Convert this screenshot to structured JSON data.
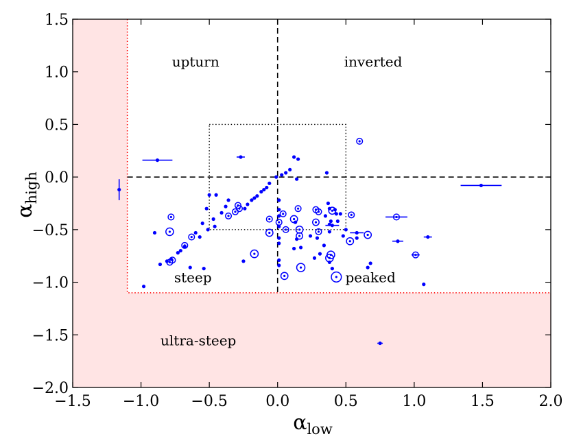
{
  "chart_data": {
    "type": "scatter",
    "xlabel": "α",
    "xlabel_sub": "low",
    "ylabel": "α",
    "ylabel_sub": "high",
    "xlim": [
      -1.5,
      2.0
    ],
    "ylim": [
      -2.0,
      1.5
    ],
    "x_ticks": [
      -1.5,
      -1.0,
      -0.5,
      0.0,
      0.5,
      1.0,
      1.5,
      2.0
    ],
    "y_ticks": [
      -2.0,
      -1.5,
      -1.0,
      -0.5,
      0.0,
      0.5,
      1.0,
      1.5
    ],
    "x_tick_labels": [
      "−1.5",
      "−1.0",
      "−0.5",
      "0.0",
      "0.5",
      "1.0",
      "1.5",
      "2.0"
    ],
    "y_tick_labels": [
      "−2.0",
      "−1.5",
      "−1.0",
      "−0.5",
      "0.0",
      "0.5",
      "1.0",
      "1.5"
    ],
    "grid": false,
    "colors": {
      "points": "#0000ff",
      "ultra_steep_fill": "#ffe4e4",
      "ultra_steep_border": "#ff0000",
      "guides": "#000000"
    },
    "region_labels": [
      {
        "text": "upturn",
        "x": -0.6,
        "y": 1.05
      },
      {
        "text": "inverted",
        "x": 0.7,
        "y": 1.05
      },
      {
        "text": "steep",
        "x": -0.62,
        "y": -1.0
      },
      {
        "text": "peaked",
        "x": 0.68,
        "y": -1.0
      },
      {
        "text": "ultra-steep",
        "x": -0.58,
        "y": -1.6
      }
    ],
    "ultra_steep_threshold": -1.1,
    "central_box": [
      -0.5,
      -0.5,
      0.5,
      0.5
    ],
    "series": [
      {
        "marker": "filled-dot",
        "points": [
          [
            -0.88,
            0.16,
            0.11,
            0
          ],
          [
            -1.16,
            -0.12,
            0,
            0.1
          ],
          [
            1.49,
            -0.08,
            0.15,
            0
          ],
          [
            -0.27,
            0.19,
            0.03,
            0
          ],
          [
            0.12,
            0.19,
            0,
            0
          ],
          [
            0.15,
            0.17,
            0,
            0
          ],
          [
            0.09,
            0.07,
            0,
            0
          ],
          [
            0.06,
            0.04,
            0,
            0
          ],
          [
            0.03,
            0.02,
            0,
            0
          ],
          [
            0.36,
            0.04,
            0,
            0
          ],
          [
            0.14,
            -0.02,
            0,
            0
          ],
          [
            -0.01,
            0,
            0,
            0
          ],
          [
            -0.06,
            -0.06,
            0,
            0
          ],
          [
            -0.08,
            -0.1,
            0,
            0
          ],
          [
            -0.1,
            -0.12,
            0,
            0
          ],
          [
            -0.12,
            -0.14,
            0,
            0
          ],
          [
            -0.15,
            -0.18,
            0,
            0
          ],
          [
            -0.17,
            -0.2,
            0,
            0
          ],
          [
            -0.19,
            -0.22,
            0,
            0
          ],
          [
            -0.22,
            -0.26,
            0,
            0
          ],
          [
            -0.24,
            -0.3,
            0,
            0
          ],
          [
            -0.5,
            -0.17,
            0,
            0
          ],
          [
            -0.45,
            -0.17,
            0,
            0
          ],
          [
            -0.52,
            -0.3,
            0,
            0
          ],
          [
            -0.47,
            -0.4,
            0,
            0
          ],
          [
            -0.41,
            -0.34,
            0,
            0
          ],
          [
            -0.38,
            -0.28,
            0,
            0
          ],
          [
            -0.36,
            -0.22,
            0,
            0
          ],
          [
            -0.46,
            -0.47,
            0,
            0
          ],
          [
            -0.51,
            -0.5,
            0,
            0
          ],
          [
            -0.55,
            -0.44,
            0,
            0
          ],
          [
            -0.57,
            -0.57,
            0,
            0
          ],
          [
            -0.6,
            -0.53,
            0,
            0
          ],
          [
            -0.68,
            -0.66,
            0,
            0
          ],
          [
            -0.71,
            -0.7,
            0,
            0
          ],
          [
            -0.73,
            -0.72,
            0,
            0
          ],
          [
            -0.78,
            -0.78,
            0,
            0
          ],
          [
            -0.81,
            -0.8,
            0,
            0
          ],
          [
            -0.86,
            -0.83,
            0,
            0
          ],
          [
            -0.9,
            -0.53,
            0,
            0
          ],
          [
            -0.98,
            -1.04,
            0,
            0
          ],
          [
            -0.54,
            -0.87,
            0,
            0
          ],
          [
            -0.64,
            -0.86,
            0,
            0
          ],
          [
            -0.25,
            -0.8,
            0,
            0
          ],
          [
            0.01,
            -0.22,
            0,
            0
          ],
          [
            0.01,
            -0.31,
            0,
            0
          ],
          [
            0.01,
            -0.37,
            0,
            0
          ],
          [
            0.01,
            -0.47,
            0,
            0
          ],
          [
            0.01,
            -0.58,
            0,
            0
          ],
          [
            0.01,
            -0.63,
            0,
            0
          ],
          [
            0.01,
            -0.79,
            0,
            0
          ],
          [
            0.01,
            -0.84,
            0,
            0
          ],
          [
            0.13,
            -0.43,
            0,
            0
          ],
          [
            0.14,
            -0.59,
            0,
            0
          ],
          [
            0.12,
            -0.68,
            0,
            0
          ],
          [
            0.17,
            -0.67,
            0,
            0
          ],
          [
            0.24,
            -0.56,
            0,
            0
          ],
          [
            0.27,
            -0.77,
            0,
            0
          ],
          [
            0.31,
            -0.73,
            0,
            0
          ],
          [
            0.34,
            -0.65,
            0,
            0
          ],
          [
            0.37,
            -0.25,
            0,
            0
          ],
          [
            0.38,
            -0.3,
            0,
            0
          ],
          [
            0.42,
            -0.31,
            0,
            0
          ],
          [
            0.43,
            -0.35,
            0,
            0
          ],
          [
            0.46,
            -0.35,
            0,
            0
          ],
          [
            0.38,
            -0.45,
            0,
            0
          ],
          [
            0.4,
            -0.46,
            0.05,
            0
          ],
          [
            0.5,
            -0.5,
            0,
            0
          ],
          [
            0.58,
            -0.53,
            0.05,
            0
          ],
          [
            0.38,
            -0.52,
            0,
            0
          ],
          [
            0.29,
            -0.58,
            0,
            0
          ],
          [
            0.38,
            -0.81,
            0,
            0
          ],
          [
            0.4,
            -0.87,
            0,
            0
          ],
          [
            0.58,
            -0.58,
            0,
            0
          ],
          [
            0.66,
            -0.86,
            0,
            0
          ],
          [
            0.68,
            -0.82,
            0,
            0
          ],
          [
            0.88,
            -0.61,
            0.04,
            0
          ],
          [
            1.1,
            -0.57,
            0.03,
            0
          ],
          [
            1.07,
            -1.02,
            0,
            0
          ],
          [
            0.75,
            -1.58,
            0.02,
            0
          ],
          [
            0.39,
            -0.42,
            0,
            0
          ],
          [
            0.35,
            -0.37,
            0,
            0
          ],
          [
            0.44,
            -0.42,
            0,
            0
          ],
          [
            0.48,
            -0.56,
            0,
            0
          ]
        ]
      },
      {
        "marker": "open-circle",
        "points": [
          [
            0.6,
            0.34,
            0,
            0,
            1
          ],
          [
            -0.29,
            -0.27,
            0,
            0,
            1
          ],
          [
            -0.28,
            -0.3,
            0,
            0,
            1
          ],
          [
            -0.31,
            -0.33,
            0,
            0,
            1
          ],
          [
            -0.36,
            -0.37,
            0,
            0,
            1
          ],
          [
            -0.79,
            -0.81,
            0,
            0,
            1
          ],
          [
            -0.77,
            -0.79,
            0,
            0,
            1
          ],
          [
            -0.63,
            -0.57,
            0,
            0,
            1
          ],
          [
            -0.68,
            -0.65,
            0,
            0,
            1
          ],
          [
            -0.78,
            -0.38,
            0,
            0,
            1
          ],
          [
            -0.79,
            -0.52,
            0,
            0,
            1.3
          ],
          [
            -0.17,
            -0.73,
            0,
            0,
            1.3
          ],
          [
            -0.06,
            -0.4,
            0,
            0,
            1
          ],
          [
            -0.06,
            -0.53,
            0,
            0,
            1.2
          ],
          [
            0.04,
            -0.35,
            0,
            0,
            1
          ],
          [
            0.01,
            -0.43,
            0,
            0,
            1
          ],
          [
            0.06,
            -0.5,
            0,
            0,
            1
          ],
          [
            0.15,
            -0.3,
            0,
            0,
            1
          ],
          [
            0.12,
            -0.4,
            0,
            0,
            1.2
          ],
          [
            0.16,
            -0.5,
            0,
            0,
            1.2
          ],
          [
            0.16,
            -0.56,
            0,
            0,
            1.1
          ],
          [
            0.28,
            -0.31,
            0,
            0,
            1
          ],
          [
            0.3,
            -0.33,
            0,
            0,
            1
          ],
          [
            0.28,
            -0.43,
            0,
            0,
            1.1
          ],
          [
            0.3,
            -0.52,
            0,
            0,
            1
          ],
          [
            0.4,
            -0.32,
            0,
            0,
            1.2
          ],
          [
            0.54,
            -0.36,
            0,
            0,
            1
          ],
          [
            0.87,
            -0.38,
            0.08,
            0,
            1
          ],
          [
            0.66,
            -0.55,
            0,
            0,
            1.2
          ],
          [
            0.53,
            -0.61,
            0,
            0,
            1.2
          ],
          [
            0.39,
            -0.74,
            0,
            0,
            1.3
          ],
          [
            0.38,
            -0.77,
            0,
            0,
            1.3
          ],
          [
            0.17,
            -0.86,
            0,
            0,
            1.4
          ],
          [
            0.05,
            -0.94,
            0,
            0,
            1.2
          ],
          [
            0.43,
            -0.95,
            0,
            0,
            1.7
          ],
          [
            1.01,
            -0.74,
            0.03,
            0,
            1
          ]
        ]
      }
    ]
  }
}
